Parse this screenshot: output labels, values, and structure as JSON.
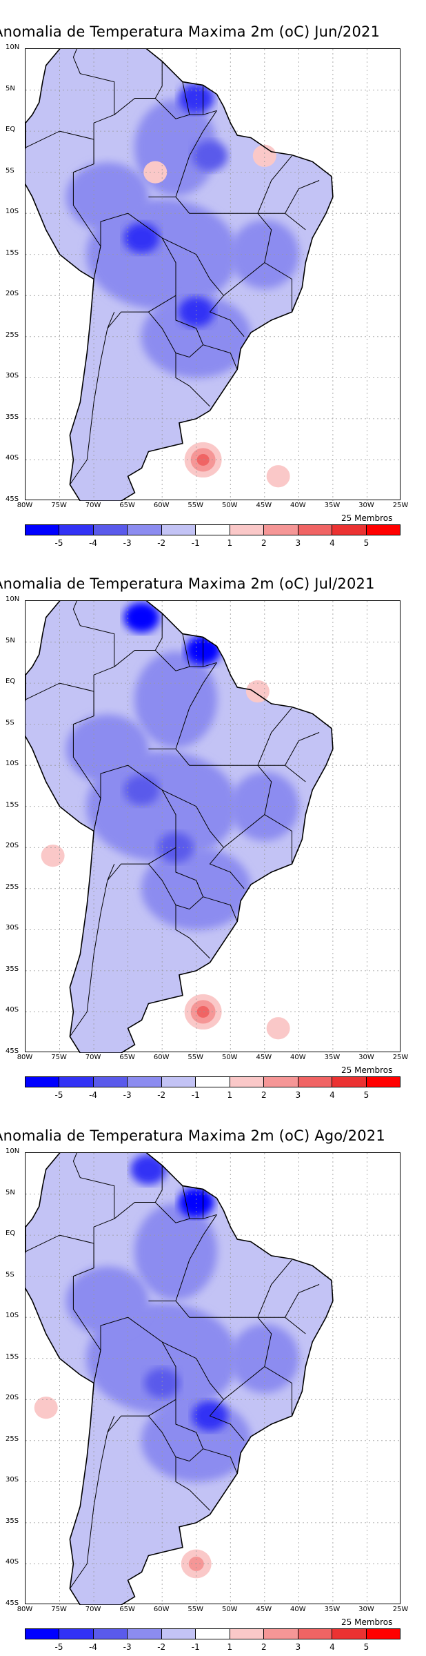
{
  "panels": [
    {
      "title": "Anomalia de Temperatura Maxima 2m (oC) Jun/2021",
      "members": "25 Membros",
      "warm_spots": [
        {
          "lon": -54,
          "lat": -40,
          "level": 3
        },
        {
          "lon": -43,
          "lat": -42,
          "level": 1
        },
        {
          "lon": -61,
          "lat": -5,
          "level": 1
        },
        {
          "lon": -45,
          "lat": -3,
          "level": 1
        }
      ],
      "cold_spots": [
        {
          "lon": -55,
          "lat": 4,
          "level": -4
        },
        {
          "lon": -53,
          "lat": -3,
          "level": -3
        },
        {
          "lon": -63,
          "lat": -13,
          "level": -4
        },
        {
          "lon": -55,
          "lat": -22,
          "level": -4
        }
      ]
    },
    {
      "title": "Anomalia de Temperatura Maxima 2m (oC) Jul/2021",
      "members": "25 Membros",
      "warm_spots": [
        {
          "lon": -54,
          "lat": -40,
          "level": 3
        },
        {
          "lon": -43,
          "lat": -42,
          "level": 1
        },
        {
          "lon": -76,
          "lat": -21,
          "level": 1
        },
        {
          "lon": -46,
          "lat": -1,
          "level": 1
        }
      ],
      "cold_spots": [
        {
          "lon": -63,
          "lat": 8,
          "level": -5
        },
        {
          "lon": -54,
          "lat": 4,
          "level": -5
        },
        {
          "lon": -58,
          "lat": -20,
          "level": -3
        },
        {
          "lon": -63,
          "lat": -13,
          "level": -3
        }
      ]
    },
    {
      "title": "Anomalia de Temperatura Maxima 2m (oC) Ago/2021",
      "members": "25 Membros",
      "warm_spots": [
        {
          "lon": -55,
          "lat": -40,
          "level": 2
        },
        {
          "lon": -77,
          "lat": -21,
          "level": 1
        }
      ],
      "cold_spots": [
        {
          "lon": -55,
          "lat": 4,
          "level": -5
        },
        {
          "lon": -62,
          "lat": 8,
          "level": -4
        },
        {
          "lon": -53,
          "lat": -22,
          "level": -4
        },
        {
          "lon": -60,
          "lat": -18,
          "level": -3
        }
      ]
    }
  ],
  "lat_labels": [
    "10N",
    "5N",
    "EQ",
    "5S",
    "10S",
    "15S",
    "20S",
    "25S",
    "30S",
    "35S",
    "40S",
    "45S"
  ],
  "lon_labels": [
    "80W",
    "75W",
    "70W",
    "65W",
    "60W",
    "55W",
    "50W",
    "45W",
    "40W",
    "35W",
    "30W",
    "25W"
  ],
  "colorbar": {
    "labels": [
      "-5",
      "-4",
      "-3",
      "-2",
      "-1",
      "1",
      "2",
      "3",
      "4",
      "5"
    ],
    "colors": [
      "#0000ff",
      "#3232f5",
      "#5a5aeb",
      "#8c8cf0",
      "#c3c3f5",
      "#ffffff",
      "#fac8c8",
      "#f59696",
      "#f06464",
      "#eb3232",
      "#ff0000"
    ]
  }
}
